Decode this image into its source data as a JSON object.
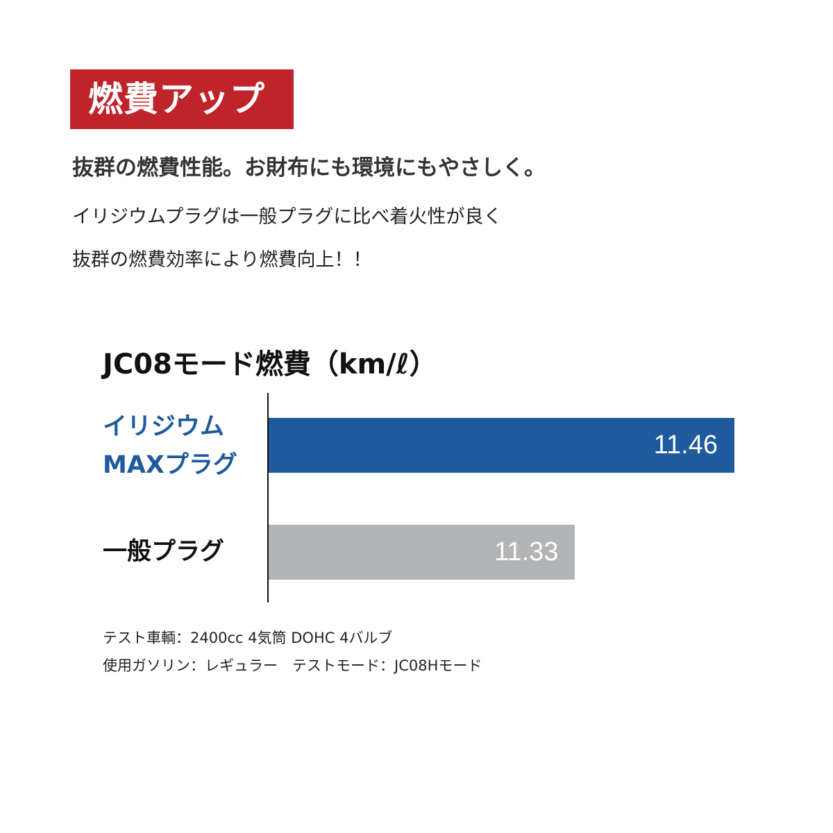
{
  "header": {
    "badge": "燃費アップ",
    "lead": "抜群の燃費性能。お財布にも環境にもやさしく。",
    "body": [
      "イリジウムプラグは一般プラグに比べ着火性が良く",
      "抜群の燃費効率により燃費向上！！"
    ]
  },
  "chart_data": {
    "type": "bar",
    "orientation": "horizontal",
    "title": "JC08モード燃費（km/ℓ）",
    "categories": [
      [
        "イリジウム",
        "MAXプラグ"
      ],
      [
        "一般プラグ"
      ]
    ],
    "values": [
      11.46,
      11.33
    ],
    "value_labels": [
      "11.46",
      "11.33"
    ],
    "colors": [
      "#1f5a9c",
      "#b3b4b6"
    ],
    "category_colors": [
      "#1f5a9c",
      "#111111"
    ],
    "xlim": [
      11.08,
      11.46
    ],
    "grid": false
  },
  "notes": [
    "テスト車輌：2400cc 4気筒 DOHC 4バルブ",
    "使用ガソリン：レギュラー　テストモード：JC08Hモード"
  ]
}
